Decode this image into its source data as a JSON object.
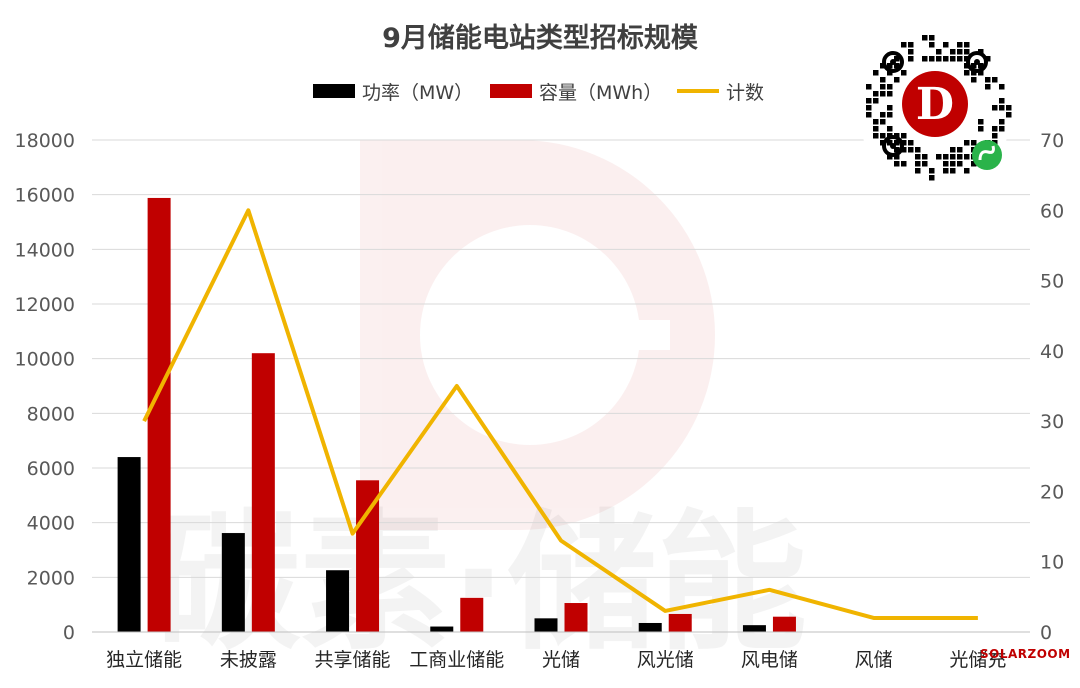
{
  "chart_data": {
    "type": "bar",
    "title": "9月储能电站类型招标规模",
    "categories": [
      "独立储能",
      "未披露",
      "共享储能",
      "工商业储能",
      "光储",
      "风光储",
      "风电储",
      "风储",
      "光储充"
    ],
    "series": [
      {
        "name": "功率（MW）",
        "type": "bar",
        "axis": "left",
        "color": "#000000",
        "values": [
          6400,
          3620,
          2260,
          200,
          500,
          330,
          250,
          0,
          0
        ]
      },
      {
        "name": "容量（MWh）",
        "type": "bar",
        "axis": "left",
        "color": "#c00000",
        "values": [
          15880,
          10200,
          5550,
          1250,
          1060,
          660,
          560,
          0,
          0
        ]
      },
      {
        "name": "计数",
        "type": "line",
        "axis": "right",
        "color": "#f0b400",
        "values": [
          30,
          60,
          14,
          35,
          13,
          3,
          6,
          2,
          2
        ]
      }
    ],
    "ylim": [
      0,
      18000
    ],
    "yticks": [
      0,
      2000,
      4000,
      6000,
      8000,
      10000,
      12000,
      14000,
      16000,
      18000
    ],
    "y2lim": [
      0,
      70
    ],
    "y2ticks": [
      0,
      10,
      20,
      30,
      40,
      50,
      60,
      70
    ],
    "grid": true,
    "legend_position": "top-center"
  },
  "watermark": {
    "logo_letter": "D",
    "text": "碳素·储能",
    "corner_text": "SOLARZOOM",
    "qr_icon": "mini-program-qr-icon"
  }
}
